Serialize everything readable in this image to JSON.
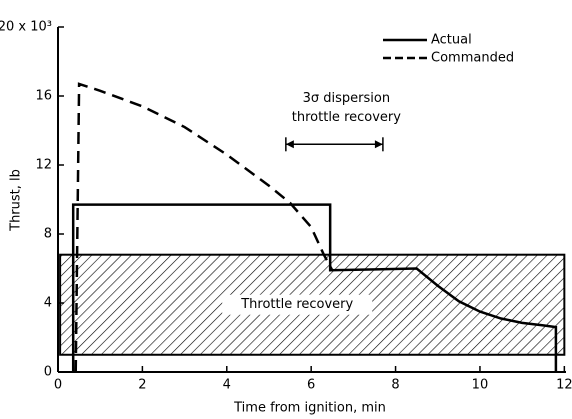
{
  "chart_data": {
    "type": "line",
    "xlabel": "Time from ignition, min",
    "ylabel": "Thrust, lb",
    "xlim": [
      0,
      12.3
    ],
    "xticks": [
      0,
      2,
      4,
      6,
      8,
      10,
      12
    ],
    "ylim": [
      0,
      20
    ],
    "yticks": [
      0,
      4,
      8,
      12,
      16,
      {
        "value": 20,
        "label": "20 x 10³"
      }
    ],
    "legend": "upper right",
    "series": [
      {
        "name": "Actual",
        "color": "#000000",
        "dash": "solid",
        "x": [
          0.36,
          0.36,
          6.45,
          6.45,
          8.5,
          9,
          9.5,
          10,
          10.5,
          11,
          11.5,
          11.8,
          11.8
        ],
        "values": [
          0,
          9.7,
          9.7,
          5.9,
          6.0,
          5.0,
          4.1,
          3.5,
          3.1,
          2.85,
          2.7,
          2.6,
          0
        ]
      },
      {
        "name": "Commanded",
        "color": "#000000",
        "dash": "dashed",
        "x": [
          0.42,
          0.5,
          1,
          2,
          3,
          4,
          5,
          5.5,
          6,
          6.3,
          6.5
        ],
        "values": [
          0,
          16.7,
          16.3,
          15.4,
          14.2,
          12.6,
          10.8,
          9.8,
          8.4,
          6.8,
          5.9
        ]
      }
    ],
    "shaded_band": {
      "label": "Throttle recovery",
      "x": [
        0.05,
        12
      ],
      "y": [
        1,
        6.8
      ]
    },
    "dispersion": {
      "label": [
        "3σ dispersion",
        "throttle recovery"
      ],
      "x": [
        5.4,
        7.7
      ],
      "y": 13.2
    }
  }
}
